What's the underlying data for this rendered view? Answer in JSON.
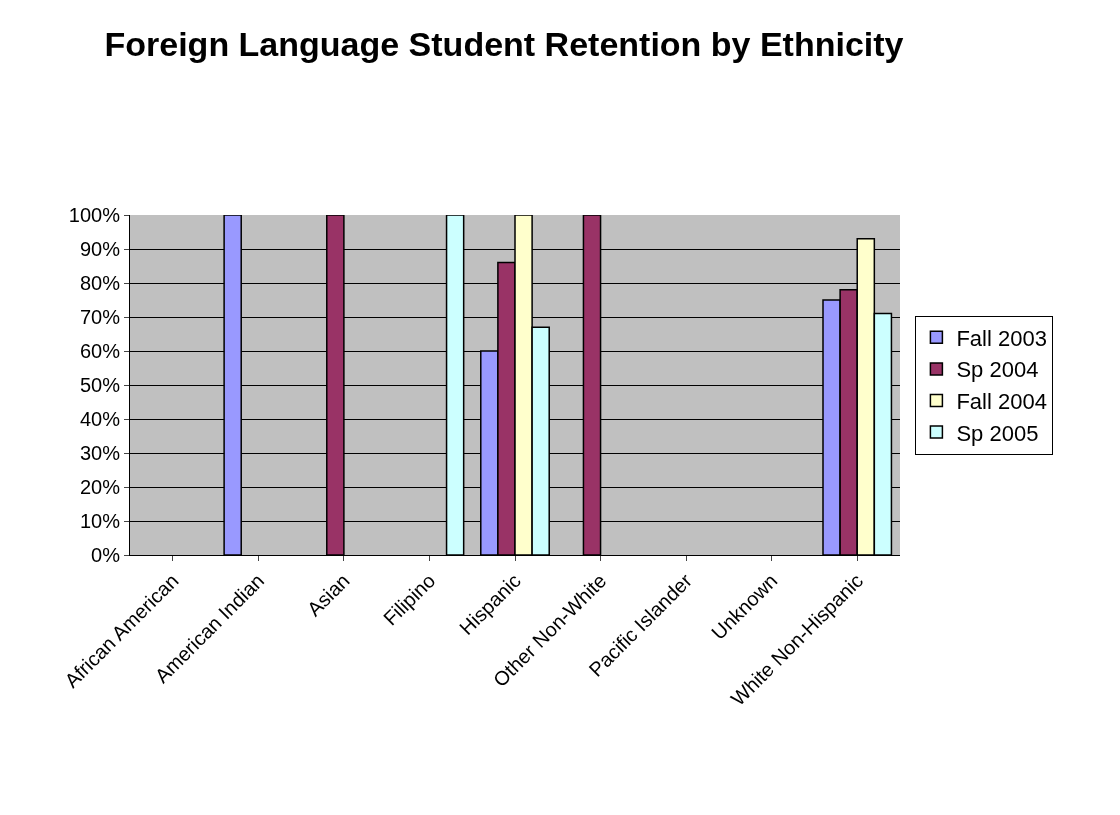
{
  "chart_data": {
    "type": "bar",
    "title": "Foreign Language Student Retention by Ethnicity",
    "categories": [
      "African American",
      "American Indian",
      "Asian",
      "Filipino",
      "Hispanic",
      "Other Non-White",
      "Pacific Islander",
      "Unknown",
      "White Non-Hispanic"
    ],
    "series": [
      {
        "name": "Fall 2003",
        "color": "#9999ff",
        "values": [
          null,
          100,
          null,
          null,
          60,
          null,
          null,
          null,
          75
        ]
      },
      {
        "name": "Sp 2004",
        "color": "#993366",
        "values": [
          null,
          null,
          100,
          null,
          86,
          100,
          null,
          null,
          78
        ]
      },
      {
        "name": "Fall 2004",
        "color": "#ffffcc",
        "values": [
          null,
          null,
          null,
          null,
          100,
          null,
          null,
          null,
          93
        ]
      },
      {
        "name": "Sp 2005",
        "color": "#ccffff",
        "values": [
          null,
          null,
          null,
          100,
          67,
          null,
          null,
          null,
          71
        ]
      }
    ],
    "ylim": [
      0,
      100
    ],
    "yticks": [
      {
        "value": 0,
        "label": "0%"
      },
      {
        "value": 10,
        "label": "10%"
      },
      {
        "value": 20,
        "label": "20%"
      },
      {
        "value": 30,
        "label": "30%"
      },
      {
        "value": 40,
        "label": "40%"
      },
      {
        "value": 50,
        "label": "50%"
      },
      {
        "value": 60,
        "label": "60%"
      },
      {
        "value": 70,
        "label": "70%"
      },
      {
        "value": 80,
        "label": "80%"
      },
      {
        "value": 90,
        "label": "90%"
      },
      {
        "value": 100,
        "label": "100%"
      }
    ],
    "grid": "y",
    "legend": "right"
  }
}
